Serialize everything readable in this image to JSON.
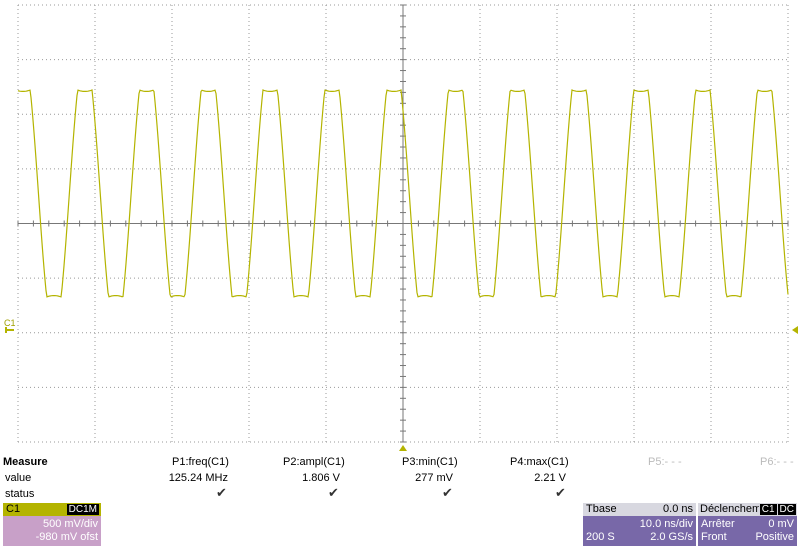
{
  "screen": {
    "marker": "C1",
    "measure": {
      "title": "Measure",
      "row_labels": [
        "value",
        "status"
      ],
      "params": [
        {
          "label": "P1:freq(C1)",
          "value": "125.24 MHz"
        },
        {
          "label": "P2:ampl(C1)",
          "value": "1.806 V"
        },
        {
          "label": "P3:min(C1)",
          "value": "277 mV"
        },
        {
          "label": "P4:max(C1)",
          "value": "2.21 V"
        },
        {
          "label": "P5:- - -"
        },
        {
          "label": "P6:- - -"
        }
      ]
    },
    "channel": {
      "label": "C1",
      "coupling": "DC1M",
      "scale": "500 mV/div",
      "offset": "-980 mV ofst"
    },
    "timebase": {
      "label": "Tbase",
      "delay": "0.0 ns",
      "scale": "10.0 ns/div",
      "samples": "200 S",
      "rate": "2.0 GS/s"
    },
    "trigger": {
      "label": "Déclenchem",
      "source": "C1",
      "coupling": "DC",
      "mode": "Arrêter",
      "level": "0 mV",
      "slope": "Front",
      "polarity": "Positive"
    }
  }
}
